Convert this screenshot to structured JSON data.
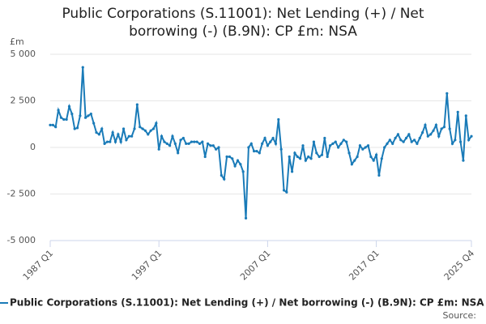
{
  "chart_data": {
    "type": "line",
    "title": "Public Corporations (S.11001): Net Lending (+) / Net borrowing (-) (B.9N): CP £m: NSA",
    "y_label": "£m",
    "source": "Source:",
    "categories": [
      "1987 Q1",
      null,
      null,
      null,
      null,
      null,
      null,
      null,
      null,
      null,
      null,
      null,
      null,
      null,
      null,
      null,
      null,
      null,
      null,
      null,
      null,
      null,
      null,
      null,
      null,
      null,
      null,
      null,
      null,
      null,
      null,
      null,
      null,
      null,
      null,
      null,
      null,
      null,
      null,
      null,
      "1997 Q1",
      null,
      null,
      null,
      null,
      null,
      null,
      null,
      null,
      null,
      null,
      null,
      null,
      null,
      null,
      null,
      null,
      null,
      null,
      null,
      null,
      null,
      null,
      null,
      null,
      null,
      null,
      null,
      null,
      null,
      null,
      null,
      null,
      null,
      null,
      null,
      null,
      null,
      null,
      null,
      "2007 Q1",
      null,
      null,
      null,
      null,
      null,
      null,
      null,
      null,
      null,
      null,
      null,
      null,
      null,
      null,
      null,
      null,
      null,
      null,
      null,
      null,
      null,
      null,
      null,
      null,
      null,
      null,
      null,
      null,
      null,
      null,
      null,
      null,
      null,
      null,
      null,
      null,
      null,
      null,
      null,
      "2017 Q1",
      null,
      null,
      null,
      null,
      null,
      null,
      null,
      null,
      null,
      null,
      null,
      null,
      null,
      null,
      null,
      null,
      null,
      null,
      null,
      null,
      null,
      null,
      null,
      null,
      null,
      null,
      null,
      null,
      null,
      null,
      null,
      null,
      null,
      null,
      "2025 Q4"
    ],
    "series": [
      {
        "name": "Public Corporations (S.11001): Net Lending (+) / Net borrowing (-) (B.9N): CP £m: NSA",
        "color": "#1a7bb8",
        "values": [
          1200,
          1200,
          1100,
          2000,
          1600,
          1500,
          1500,
          2200,
          1800,
          1000,
          1050,
          1700,
          4300,
          1600,
          1700,
          1800,
          1300,
          800,
          700,
          1000,
          200,
          300,
          300,
          800,
          300,
          700,
          300,
          1000,
          400,
          600,
          600,
          1000,
          2300,
          1100,
          1000,
          900,
          700,
          900,
          1000,
          1300,
          -100,
          600,
          300,
          200,
          100,
          600,
          200,
          -300,
          400,
          500,
          200,
          200,
          300,
          300,
          300,
          200,
          300,
          -500,
          200,
          100,
          100,
          -100,
          0,
          -1500,
          -1700,
          -500,
          -500,
          -600,
          -1000,
          -700,
          -900,
          -1300,
          -3800,
          0,
          200,
          -200,
          -200,
          -300,
          200,
          500,
          100,
          300,
          500,
          200,
          1500,
          -100,
          -2300,
          -2400,
          -500,
          -1300,
          -300,
          -500,
          -600,
          100,
          -700,
          -500,
          -600,
          300,
          -300,
          -500,
          -400,
          500,
          -500,
          100,
          200,
          300,
          0,
          200,
          400,
          300,
          -300,
          -900,
          -700,
          -500,
          100,
          -100,
          0,
          100,
          -500,
          -700,
          -400,
          -1500,
          -600,
          0,
          200,
          400,
          200,
          500,
          700,
          400,
          300,
          500,
          700,
          300,
          400,
          200,
          500,
          800,
          1200,
          600,
          700,
          900,
          1200,
          600,
          1000,
          1100,
          2900,
          1000,
          200,
          400,
          1900,
          300,
          -700,
          1700,
          400,
          600
        ]
      }
    ],
    "ylim": [
      -5000,
      5000
    ],
    "yticks": [
      {
        "value": -5000,
        "label": "-5 000"
      },
      {
        "value": -2500,
        "label": "-2 500"
      },
      0,
      {
        "value": 2500,
        "label": "2 500"
      },
      {
        "value": 5000,
        "label": "5 000"
      }
    ],
    "grid": true
  }
}
